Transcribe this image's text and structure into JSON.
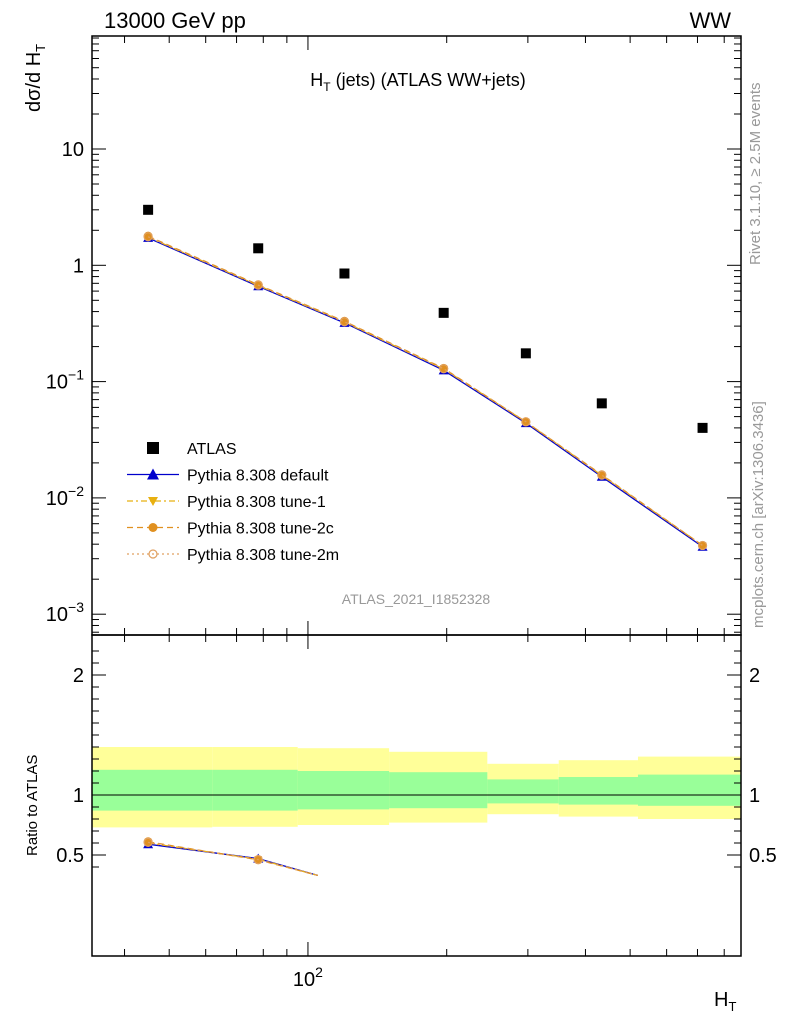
{
  "header": {
    "left": "13000 GeV pp",
    "right": "WW"
  },
  "side_labels": {
    "rivet": "Rivet 3.1.10, ≥ 2.5M events",
    "mcplots": "mcplots.cern.ch [arXiv:1306.3436]"
  },
  "chart_data": [
    {
      "type": "scatter",
      "panel": "main",
      "title": "H_T (jets) (ATLAS WW+jets)",
      "ylabel": "dσ/d H_T",
      "yscale": "log",
      "ylim": [
        0.0006,
        100
      ],
      "xscale": "log",
      "xlim": [
        34,
        870
      ],
      "watermark": "ATLAS_2021_I1852328",
      "legend_position": "lower-left",
      "ytick_labels": [
        "10",
        "1",
        "10⁻¹",
        "10⁻²",
        "10⁻³"
      ],
      "series": [
        {
          "name": "ATLAS",
          "style": "data-squares",
          "color": "#000000",
          "x": [
            45,
            78,
            120,
            197,
            297,
            434,
            718
          ],
          "y": [
            3.0,
            1.4,
            0.85,
            0.39,
            0.175,
            0.065,
            0.04
          ]
        },
        {
          "name": "Pythia 8.308 default",
          "style": "solid-triangle-up",
          "color": "#0000cc",
          "x": [
            45,
            78,
            120,
            197,
            297,
            434,
            718
          ],
          "y": [
            1.72,
            0.66,
            0.32,
            0.125,
            0.044,
            0.0152,
            0.0038
          ]
        },
        {
          "name": "Pythia 8.308 tune-1",
          "style": "dashdot-triangle-down",
          "color": "#e8b010",
          "x": [
            45,
            78,
            120,
            197,
            297,
            434,
            718
          ],
          "y": [
            1.75,
            0.67,
            0.325,
            0.128,
            0.045,
            0.0156,
            0.0039
          ]
        },
        {
          "name": "Pythia 8.308 tune-2c",
          "style": "dashed-circle",
          "color": "#e09020",
          "x": [
            45,
            78,
            120,
            197,
            297,
            434,
            718
          ],
          "y": [
            1.78,
            0.68,
            0.33,
            0.13,
            0.045,
            0.0158,
            0.0039
          ]
        },
        {
          "name": "Pythia 8.308 tune-2m",
          "style": "dotted-open-circle",
          "color": "#e0a060",
          "x": [
            45,
            78,
            120,
            197,
            297,
            434,
            718
          ],
          "y": [
            1.76,
            0.675,
            0.327,
            0.129,
            0.0452,
            0.0157,
            0.0039
          ]
        }
      ]
    },
    {
      "type": "line",
      "panel": "ratio",
      "ylabel": "Ratio to ATLAS",
      "xlabel": "H_T",
      "ylim": [
        0.33,
        2.3
      ],
      "xscale": "log",
      "xlim": [
        34,
        870
      ],
      "ytick_labels": [
        "2",
        "1",
        "0.5"
      ],
      "xtick_labels": [
        "10²"
      ],
      "bands": {
        "edges": [
          34,
          62,
          95,
          150,
          245,
          350,
          520,
          870
        ],
        "yellow_low": [
          0.73,
          0.735,
          0.75,
          0.77,
          0.84,
          0.82,
          0.8,
          0.785
        ],
        "yellow_high": [
          1.4,
          1.4,
          1.39,
          1.36,
          1.26,
          1.29,
          1.32,
          1.34
        ],
        "green_low": [
          0.87,
          0.87,
          0.88,
          0.89,
          0.93,
          0.92,
          0.91,
          0.9
        ],
        "green_high": [
          1.21,
          1.21,
          1.2,
          1.19,
          1.13,
          1.15,
          1.17,
          1.18
        ],
        "yellow_color": "#ffff99",
        "green_color": "#99ff99"
      },
      "series": [
        {
          "name": "Pythia 8.308 default",
          "color": "#0000cc",
          "x": [
            45,
            78,
            105
          ],
          "y": [
            0.59,
            0.47,
            0.33
          ]
        },
        {
          "name": "Pythia 8.308 tune-1",
          "color": "#e8b010",
          "x": [
            45,
            78,
            105
          ],
          "y": [
            0.6,
            0.465,
            0.33
          ]
        },
        {
          "name": "Pythia 8.308 tune-2c",
          "color": "#e09020",
          "x": [
            45,
            78,
            105
          ],
          "y": [
            0.61,
            0.46,
            0.33
          ]
        },
        {
          "name": "Pythia 8.308 tune-2m",
          "color": "#e0a060",
          "x": [
            45,
            78,
            105
          ],
          "y": [
            0.605,
            0.462,
            0.33
          ]
        }
      ]
    }
  ]
}
